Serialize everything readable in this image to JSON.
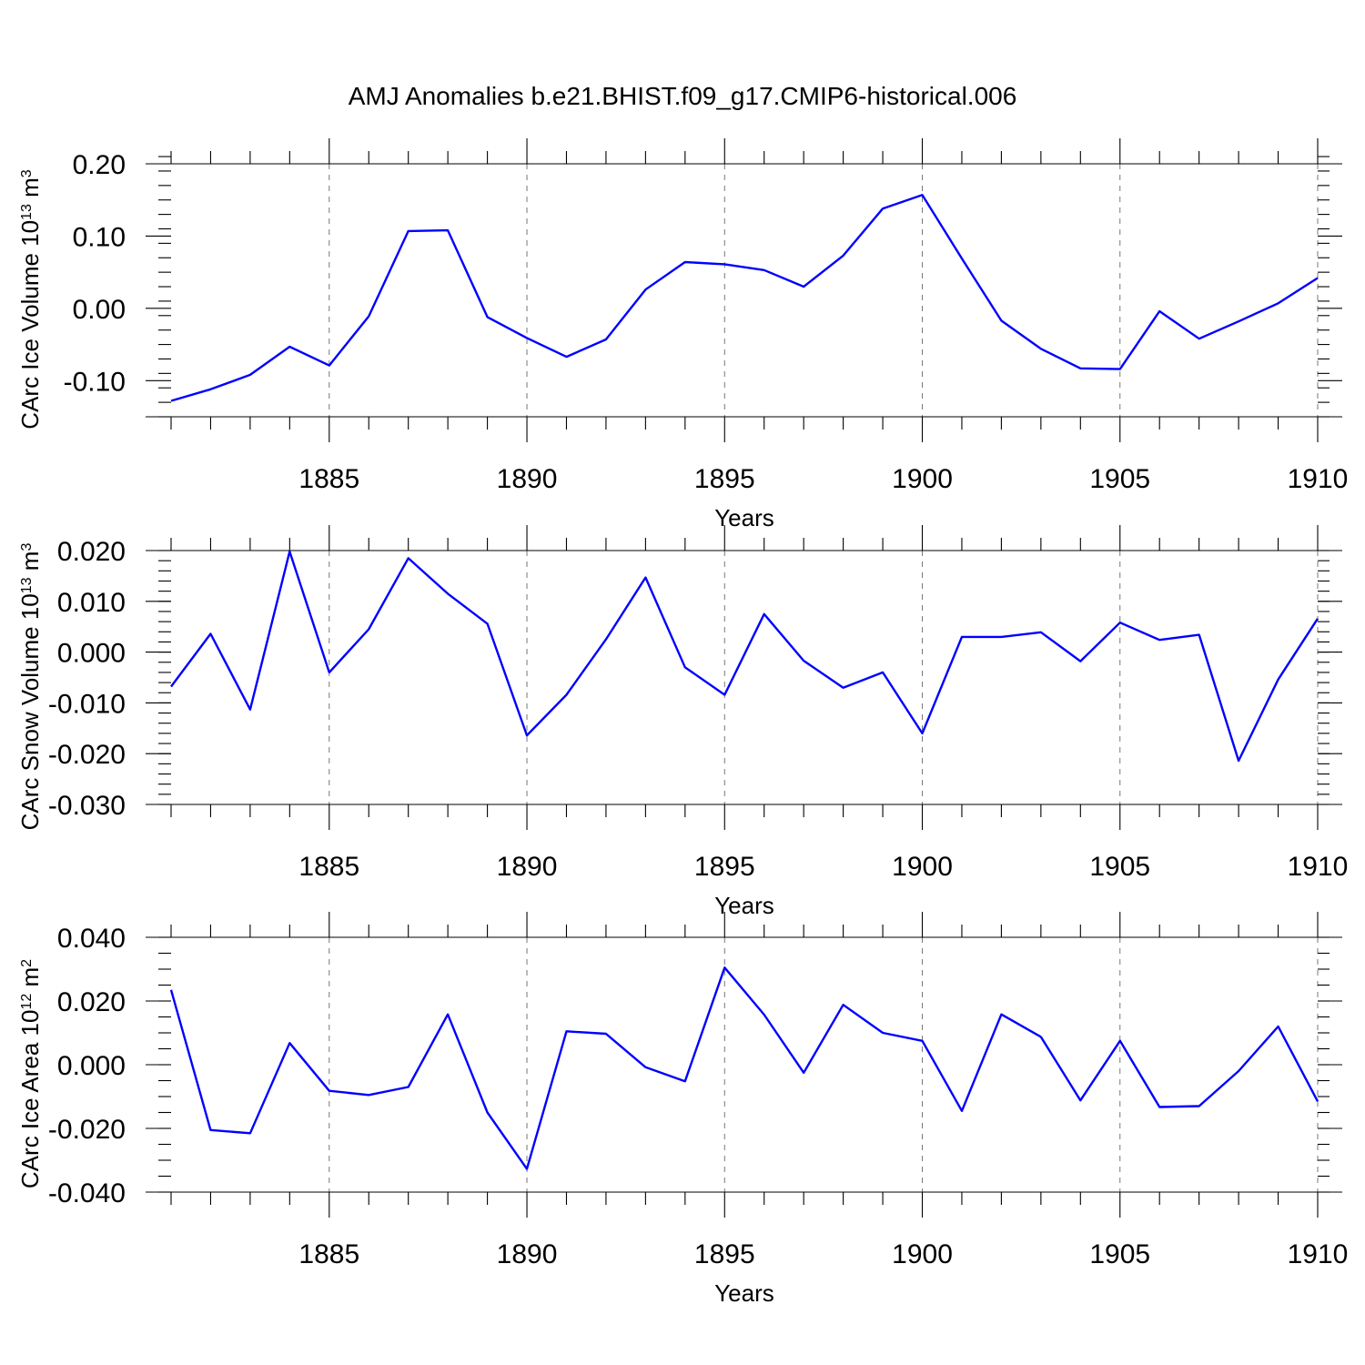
{
  "title": "AMJ Anomalies b.e21.BHIST.f09_g17.CMIP6-historical.006",
  "colors": {
    "line": "#0000ff",
    "axis": "#000000",
    "grid": "#777777"
  },
  "chart_data": [
    {
      "type": "line",
      "ylabel": "CArc Ice Volume 10",
      "ylabel_exp": "13",
      "ylabel_unit": " m",
      "ylabel_unit_exp": "3",
      "xlabel": "Years",
      "xlim": [
        1881,
        1910
      ],
      "ylim": [
        -0.15,
        0.2
      ],
      "yticks": [
        -0.1,
        0.0,
        0.1,
        0.2
      ],
      "yticklabels": [
        "-0.10",
        "0.00",
        "0.10",
        "0.20"
      ],
      "yminor": 0.02,
      "xticks": [
        1885,
        1890,
        1895,
        1900,
        1905,
        1910
      ],
      "xticklabels": [
        "1885",
        "1890",
        "1895",
        "1900",
        "1905",
        "1910"
      ],
      "x": [
        1881,
        1882,
        1883,
        1884,
        1885,
        1886,
        1887,
        1888,
        1889,
        1890,
        1891,
        1892,
        1893,
        1894,
        1895,
        1896,
        1897,
        1898,
        1899,
        1900,
        1901,
        1902,
        1903,
        1904,
        1905,
        1906,
        1907,
        1908,
        1909,
        1910
      ],
      "values": [
        -0.128,
        -0.112,
        -0.092,
        -0.053,
        -0.079,
        -0.011,
        0.107,
        0.108,
        -0.012,
        -0.041,
        -0.067,
        -0.043,
        0.026,
        0.064,
        0.061,
        0.053,
        0.03,
        0.073,
        0.138,
        0.157,
        0.069,
        -0.017,
        -0.056,
        -0.083,
        -0.084,
        -0.004,
        -0.042,
        -0.018,
        0.007,
        0.042
      ]
    },
    {
      "type": "line",
      "ylabel": "CArc Snow Volume 10",
      "ylabel_exp": "13",
      "ylabel_unit": " m",
      "ylabel_unit_exp": "3",
      "xlabel": "Years",
      "xlim": [
        1881,
        1910
      ],
      "ylim": [
        -0.03,
        0.02
      ],
      "yticks": [
        -0.03,
        -0.02,
        -0.01,
        0.0,
        0.01,
        0.02
      ],
      "yticklabels": [
        "-0.030",
        "-0.020",
        "-0.010",
        "0.000",
        "0.010",
        "0.020"
      ],
      "yminor": 0.002,
      "xticks": [
        1885,
        1890,
        1895,
        1900,
        1905,
        1910
      ],
      "xticklabels": [
        "1885",
        "1890",
        "1895",
        "1900",
        "1905",
        "1910"
      ],
      "x": [
        1881,
        1882,
        1883,
        1884,
        1885,
        1886,
        1887,
        1888,
        1889,
        1890,
        1891,
        1892,
        1893,
        1894,
        1895,
        1896,
        1897,
        1898,
        1899,
        1900,
        1901,
        1902,
        1903,
        1904,
        1905,
        1906,
        1907,
        1908,
        1909,
        1910
      ],
      "values": [
        -0.0068,
        0.0036,
        -0.0113,
        0.0198,
        -0.004,
        0.0045,
        0.0185,
        0.0115,
        0.0056,
        -0.0164,
        -0.0084,
        0.0025,
        0.0147,
        -0.003,
        -0.0084,
        0.0075,
        -0.0017,
        -0.007,
        -0.004,
        -0.016,
        0.003,
        0.003,
        0.0039,
        -0.0018,
        0.0058,
        0.0024,
        0.0034,
        -0.0214,
        -0.0054,
        0.0066
      ]
    },
    {
      "type": "line",
      "ylabel": "CArc Ice Area 10",
      "ylabel_exp": "12",
      "ylabel_unit": " m",
      "ylabel_unit_exp": "2",
      "xlabel": "Years",
      "xlim": [
        1881,
        1910
      ],
      "ylim": [
        -0.04,
        0.04
      ],
      "yticks": [
        -0.04,
        -0.02,
        0.0,
        0.02,
        0.04
      ],
      "yticklabels": [
        "-0.040",
        "-0.020",
        "0.000",
        "0.020",
        "0.040"
      ],
      "yminor": 0.005,
      "xticks": [
        1885,
        1890,
        1895,
        1900,
        1905,
        1910
      ],
      "xticklabels": [
        "1885",
        "1890",
        "1895",
        "1900",
        "1905",
        "1910"
      ],
      "x": [
        1881,
        1882,
        1883,
        1884,
        1885,
        1886,
        1887,
        1888,
        1889,
        1890,
        1891,
        1892,
        1893,
        1894,
        1895,
        1896,
        1897,
        1898,
        1899,
        1900,
        1901,
        1902,
        1903,
        1904,
        1905,
        1906,
        1907,
        1908,
        1909,
        1910
      ],
      "values": [
        0.0235,
        -0.0205,
        -0.0215,
        0.0068,
        -0.0082,
        -0.0095,
        -0.007,
        0.0158,
        -0.015,
        -0.0327,
        0.0105,
        0.0097,
        -0.0008,
        -0.0052,
        0.0305,
        0.0157,
        -0.0025,
        0.0188,
        0.01,
        0.0075,
        -0.0145,
        0.0158,
        0.0087,
        -0.0112,
        0.0075,
        -0.0133,
        -0.013,
        -0.002,
        0.012,
        -0.0115
      ]
    }
  ]
}
